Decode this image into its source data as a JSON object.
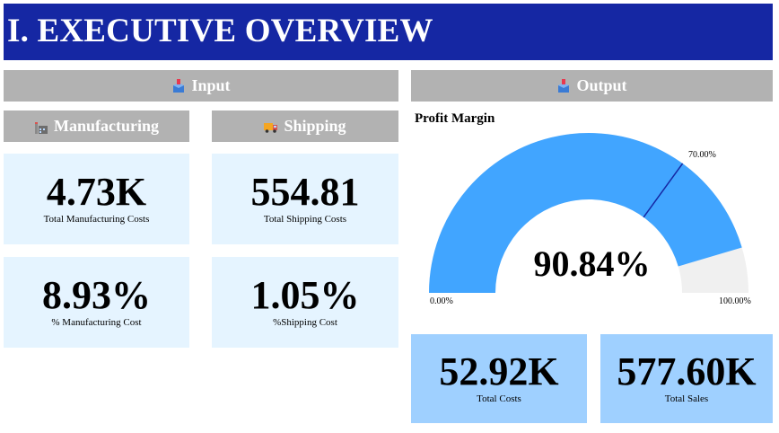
{
  "header": {
    "title": "I. EXECUTIVE OVERVIEW"
  },
  "sections": {
    "input": {
      "label": "Input",
      "icon": "package-icon"
    },
    "output": {
      "label": "Output",
      "icon": "package-icon"
    },
    "manufacturing": {
      "label": "Manufacturing",
      "icon": "factory-icon"
    },
    "shipping": {
      "label": "Shipping",
      "icon": "delivery-truck-icon"
    }
  },
  "cards": {
    "total_manufacturing_costs": {
      "value": "4.73K",
      "label": "Total Manufacturing Costs"
    },
    "total_shipping_costs": {
      "value": "554.81",
      "label": "Total Shipping Costs"
    },
    "pct_manufacturing_cost": {
      "value": "8.93%",
      "label": "% Manufacturing Cost"
    },
    "pct_shipping_cost": {
      "value": "1.05%",
      "label": "%Shipping Cost"
    },
    "total_costs": {
      "value": "52.92K",
      "label": "Total Costs"
    },
    "total_sales": {
      "value": "577.60K",
      "label": "Total Sales"
    }
  },
  "gauge": {
    "title": "Profit Margin",
    "value_label": "90.84%",
    "value": 0.9084,
    "target": 0.7,
    "min_label": "0.00%",
    "max_label": "100.00%",
    "target_label": "70.00%"
  },
  "colors": {
    "title_bar": "#1527a3",
    "section_header": "#b2b2b2",
    "card_light": "#e5f4ff",
    "card_dark": "#9fd0ff",
    "gauge_fill": "#41a5ff",
    "gauge_track": "#f0f0f0",
    "gauge_target": "#1527a3"
  }
}
